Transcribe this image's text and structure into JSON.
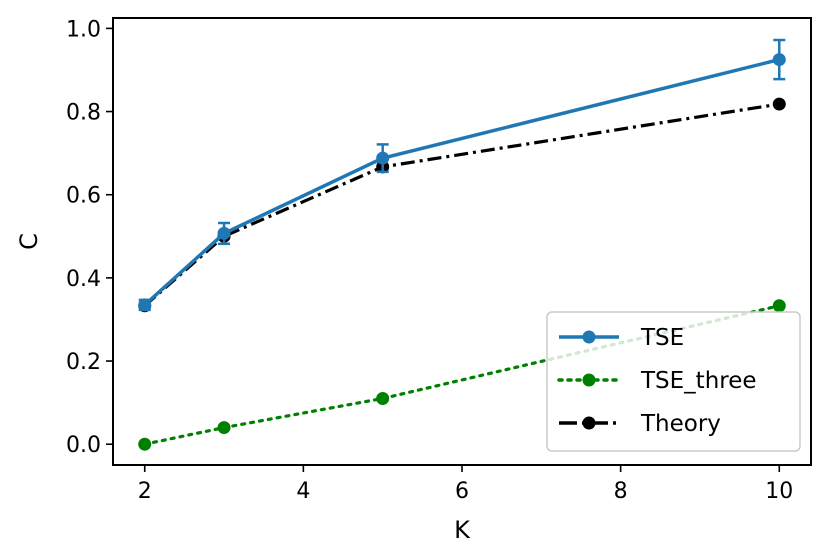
{
  "chart_data": {
    "type": "line",
    "xlabel": "K",
    "ylabel": "C",
    "xlim": [
      1.6,
      10.4
    ],
    "ylim": [
      -0.05,
      1.025
    ],
    "xticks": [
      2,
      4,
      6,
      8,
      10
    ],
    "yticks": [
      0.0,
      0.2,
      0.4,
      0.6,
      0.8,
      1.0
    ],
    "xtick_labels": [
      "2",
      "4",
      "6",
      "8",
      "10"
    ],
    "ytick_labels": [
      "0.0",
      "0.2",
      "0.4",
      "0.6",
      "0.8",
      "1.0"
    ],
    "grid": false,
    "legend_position": "lower-right",
    "series": [
      {
        "name": "TSE",
        "color": "#1f77b4",
        "linestyle": "solid",
        "marker": "circle",
        "x": [
          2,
          3,
          5,
          10
        ],
        "y": [
          0.335,
          0.507,
          0.688,
          0.925
        ],
        "yerr": [
          0.012,
          0.025,
          0.033,
          0.047
        ]
      },
      {
        "name": "TSE_three",
        "color": "#008000",
        "linestyle": "dotted",
        "marker": "circle",
        "x": [
          2,
          3,
          5,
          10
        ],
        "y": [
          0.0,
          0.04,
          0.11,
          0.333
        ]
      },
      {
        "name": "Theory",
        "color": "#000000",
        "linestyle": "dashdot",
        "marker": "circle",
        "x": [
          2,
          3,
          5,
          10
        ],
        "y": [
          0.333,
          0.5,
          0.667,
          0.818
        ]
      }
    ]
  }
}
